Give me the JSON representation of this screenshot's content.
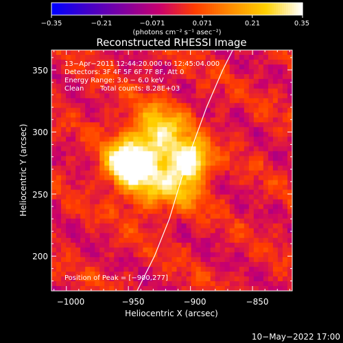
{
  "chart_data": {
    "type": "heatmap",
    "title": "Reconstructed RHESSI Image",
    "xlabel": "Heliocentric X (arcsec)",
    "ylabel": "Heliocentric Y (arcsec)",
    "xlim": [
      -1012,
      -818
    ],
    "ylim": [
      172,
      366
    ],
    "xticks": [
      -1000,
      -950,
      -900,
      -850
    ],
    "yticks": [
      200,
      250,
      300,
      350
    ],
    "xtick_labels": [
      "−1000",
      "−950",
      "−900",
      "−850"
    ],
    "ytick_labels": [
      "200",
      "250",
      "300",
      "350"
    ],
    "colorbar": {
      "range": [
        -0.35,
        0.35
      ],
      "ticks": [
        -0.35,
        -0.21,
        -0.071,
        0.071,
        0.21,
        0.35
      ],
      "tick_labels": [
        "−0.35",
        "−0.21",
        "−0.071",
        "0.071",
        "0.21",
        "0.35"
      ],
      "label": "(photons cm⁻² s⁻¹ asec⁻²)",
      "colormap": [
        "#0000ff",
        "#4400c8",
        "#8000a0",
        "#c8006e",
        "#ff3c00",
        "#ff8c00",
        "#ffd000",
        "#ffffff"
      ]
    },
    "sources": [
      {
        "x": -952,
        "y": 274,
        "peak": 0.35,
        "sigma": 11
      },
      {
        "x": -900,
        "y": 277,
        "peak": 0.35,
        "sigma": 10
      },
      {
        "x": -925,
        "y": 300,
        "peak": 0.18,
        "sigma": 14
      },
      {
        "x": -935,
        "y": 255,
        "peak": 0.15,
        "sigma": 13
      },
      {
        "x": -905,
        "y": 255,
        "peak": 0.14,
        "sigma": 12
      },
      {
        "x": -930,
        "y": 282,
        "peak": 0.2,
        "sigma": 22
      }
    ],
    "background_level": 0.04,
    "limb": [
      [
        -943,
        172
      ],
      [
        -929,
        200
      ],
      [
        -917,
        230
      ],
      [
        -908,
        260
      ],
      [
        -898,
        290
      ],
      [
        -887,
        320
      ],
      [
        -874,
        350
      ],
      [
        -866,
        366
      ]
    ],
    "annotations": {
      "time_range": "13−Apr−2011 12:44:20.000 to 12:45:04.000",
      "detectors": "Detectors: 3F 4F 5F 6F 7F 8F, Att 0",
      "energy": "Energy Range: 3.0 − 6.0 keV",
      "method": "Clean",
      "counts": "Total counts: 8.28E+03",
      "peak": "Position of Peak = [−900,277]"
    }
  },
  "footer": {
    "date": "10−May−2022 17:00"
  }
}
